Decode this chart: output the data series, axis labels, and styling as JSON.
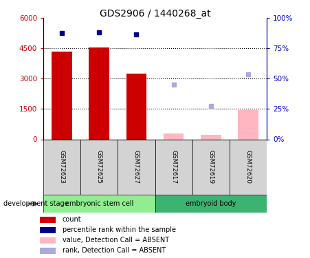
{
  "title": "GDS2906 / 1440268_at",
  "samples": [
    "GSM72623",
    "GSM72625",
    "GSM72627",
    "GSM72617",
    "GSM72619",
    "GSM72620"
  ],
  "group_labels": [
    "embryonic stem cell",
    "embryoid body"
  ],
  "group_colors": [
    "#90ee90",
    "#3cb371"
  ],
  "bar_values_present": [
    4350,
    4550,
    3250,
    null,
    null,
    null
  ],
  "bar_values_absent": [
    null,
    null,
    null,
    300,
    230,
    1450
  ],
  "rank_present_pct": [
    87.5,
    88.0,
    86.5,
    null,
    null,
    null
  ],
  "rank_absent_pct": [
    null,
    null,
    null,
    45.0,
    27.5,
    53.5
  ],
  "ylim_left": [
    0,
    6000
  ],
  "ylim_right": [
    0,
    100
  ],
  "yticks_left": [
    0,
    1500,
    3000,
    4500,
    6000
  ],
  "yticks_left_labels": [
    "0",
    "1500",
    "3000",
    "4500",
    "6000"
  ],
  "yticks_right": [
    0,
    25,
    50,
    75,
    100
  ],
  "yticks_right_labels": [
    "0%",
    "25%",
    "50%",
    "75%",
    "100%"
  ],
  "bar_color_present": "#cc0000",
  "bar_color_absent": "#ffb6c1",
  "rank_color_present": "#00008b",
  "rank_color_absent": "#aaaadd",
  "label_color_left": "#cc0000",
  "label_color_right": "#0000cc",
  "development_stage_label": "development stage",
  "legend_items": [
    {
      "label": "count",
      "color": "#cc0000"
    },
    {
      "label": "percentile rank within the sample",
      "color": "#00008b"
    },
    {
      "label": "value, Detection Call = ABSENT",
      "color": "#ffb6c1"
    },
    {
      "label": "rank, Detection Call = ABSENT",
      "color": "#aaaadd"
    }
  ]
}
